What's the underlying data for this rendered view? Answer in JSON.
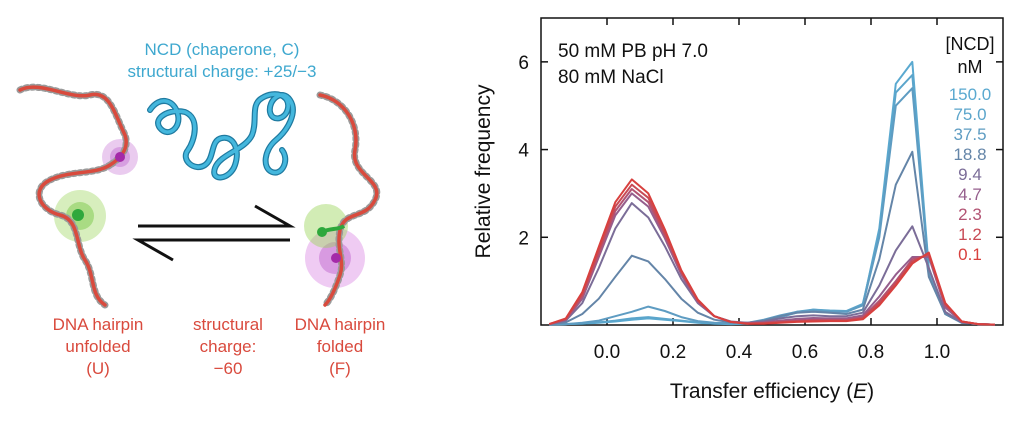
{
  "schematic": {
    "chaperone_label_line1": "NCD (chaperone, C)",
    "chaperone_label_line2": "structural charge: +25/−3",
    "unfolded_label": [
      "DNA hairpin",
      "unfolded",
      "(U)"
    ],
    "charge_label": [
      "structural",
      "charge:",
      "−60"
    ],
    "folded_label": [
      "DNA hairpin",
      "folded",
      "(F)"
    ],
    "colors": {
      "chaperone": "#3ea8cf",
      "dna": "#d94a3d",
      "donor": "#3cb84a",
      "acceptor": "#b03fb8"
    },
    "icons": {
      "equilibrium": "equilibrium-arrows-icon"
    }
  },
  "chart_data": {
    "type": "line",
    "xlabel": "Transfer efficiency (E)",
    "ylabel": "Relative frequency",
    "xlim": [
      -0.2,
      1.2
    ],
    "ylim": [
      0,
      7
    ],
    "x_ticks": [
      "0.0",
      "0.2",
      "0.4",
      "0.6",
      "0.8",
      "1.0"
    ],
    "x_tick_values": [
      0.0,
      0.2,
      0.4,
      0.6,
      0.8,
      1.0
    ],
    "y_ticks": [
      "2",
      "4",
      "6"
    ],
    "y_tick_values": [
      2,
      4,
      6
    ],
    "annotation": [
      "50 mM PB pH 7.0",
      "80 mM NaCl"
    ],
    "legend_title": [
      "[NCD]",
      "nM"
    ],
    "legend_placement": "top-right",
    "x": [
      -0.175,
      -0.125,
      -0.075,
      -0.025,
      0.025,
      0.075,
      0.125,
      0.175,
      0.225,
      0.275,
      0.325,
      0.375,
      0.425,
      0.475,
      0.525,
      0.575,
      0.625,
      0.675,
      0.725,
      0.775,
      0.825,
      0.875,
      0.925,
      0.975,
      1.025,
      1.075,
      1.125,
      1.175
    ],
    "series": [
      {
        "name": "150.0",
        "color": "#5aa9d0",
        "values": [
          0.01,
          0.02,
          0.03,
          0.05,
          0.08,
          0.12,
          0.15,
          0.12,
          0.09,
          0.05,
          0.03,
          0.02,
          0.03,
          0.08,
          0.18,
          0.28,
          0.35,
          0.32,
          0.3,
          0.45,
          2.2,
          5.5,
          6.0,
          1.3,
          0.25,
          0.05,
          0.02,
          0.01
        ]
      },
      {
        "name": "75.0",
        "color": "#5ba5cb",
        "values": [
          0.01,
          0.02,
          0.04,
          0.06,
          0.1,
          0.15,
          0.18,
          0.14,
          0.1,
          0.06,
          0.04,
          0.03,
          0.04,
          0.1,
          0.2,
          0.3,
          0.35,
          0.33,
          0.32,
          0.48,
          2.1,
          5.3,
          5.7,
          1.25,
          0.25,
          0.05,
          0.02,
          0.01
        ]
      },
      {
        "name": "37.5",
        "color": "#5e9cc2",
        "values": [
          0.01,
          0.02,
          0.05,
          0.1,
          0.2,
          0.3,
          0.42,
          0.32,
          0.18,
          0.09,
          0.05,
          0.04,
          0.05,
          0.12,
          0.22,
          0.3,
          0.33,
          0.3,
          0.3,
          0.45,
          2.0,
          5.0,
          5.4,
          1.2,
          0.25,
          0.05,
          0.02,
          0.01
        ]
      },
      {
        "name": "18.8",
        "color": "#6485a8",
        "values": [
          0.02,
          0.06,
          0.25,
          0.6,
          1.1,
          1.58,
          1.45,
          1.05,
          0.6,
          0.28,
          0.12,
          0.06,
          0.05,
          0.1,
          0.2,
          0.28,
          0.3,
          0.28,
          0.25,
          0.35,
          1.5,
          3.2,
          3.95,
          1.1,
          0.25,
          0.05,
          0.02,
          0.01
        ]
      },
      {
        "name": "9.4",
        "color": "#7b6d98",
        "values": [
          0.02,
          0.1,
          0.5,
          1.3,
          2.2,
          2.78,
          2.45,
          1.8,
          1.05,
          0.5,
          0.2,
          0.08,
          0.05,
          0.08,
          0.15,
          0.2,
          0.22,
          0.2,
          0.2,
          0.28,
          0.9,
          1.7,
          2.25,
          1.3,
          0.3,
          0.06,
          0.02,
          0.01
        ]
      },
      {
        "name": "4.7",
        "color": "#955e8d",
        "values": [
          0.02,
          0.12,
          0.6,
          1.55,
          2.5,
          3.0,
          2.7,
          1.98,
          1.15,
          0.52,
          0.2,
          0.07,
          0.04,
          0.06,
          0.1,
          0.14,
          0.16,
          0.15,
          0.15,
          0.22,
          0.65,
          1.15,
          1.55,
          1.55,
          0.4,
          0.07,
          0.02,
          0.01
        ]
      },
      {
        "name": "2.3",
        "color": "#b25373",
        "values": [
          0.02,
          0.13,
          0.65,
          1.62,
          2.6,
          3.1,
          2.8,
          2.05,
          1.2,
          0.55,
          0.2,
          0.07,
          0.04,
          0.05,
          0.08,
          0.1,
          0.12,
          0.12,
          0.12,
          0.18,
          0.55,
          1.0,
          1.5,
          1.6,
          0.45,
          0.08,
          0.02,
          0.01
        ]
      },
      {
        "name": "1.2",
        "color": "#c84a55",
        "values": [
          0.02,
          0.14,
          0.7,
          1.7,
          2.7,
          3.2,
          2.9,
          2.1,
          1.22,
          0.56,
          0.2,
          0.07,
          0.03,
          0.04,
          0.06,
          0.08,
          0.1,
          0.1,
          0.1,
          0.15,
          0.5,
          0.95,
          1.45,
          1.62,
          0.48,
          0.08,
          0.02,
          0.01
        ]
      },
      {
        "name": "0.1",
        "color": "#d8403e",
        "values": [
          0.02,
          0.15,
          0.75,
          1.78,
          2.8,
          3.32,
          3.0,
          2.18,
          1.25,
          0.58,
          0.2,
          0.07,
          0.03,
          0.03,
          0.05,
          0.07,
          0.08,
          0.09,
          0.09,
          0.13,
          0.45,
          0.9,
          1.4,
          1.65,
          0.5,
          0.08,
          0.02,
          0.01
        ]
      }
    ]
  }
}
